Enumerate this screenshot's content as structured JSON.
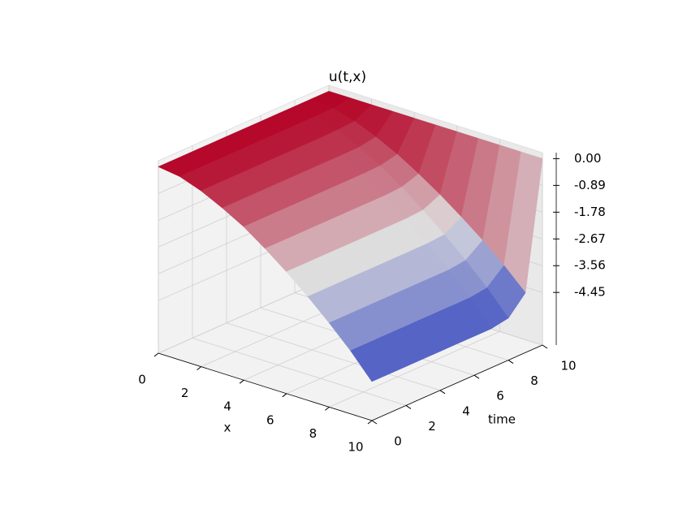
{
  "chart_data": {
    "type": "surface3d",
    "title": "u(t,x)",
    "xlabel": "x",
    "ylabel": "time",
    "x": [
      0,
      1,
      2,
      3,
      4,
      5,
      6,
      7,
      8,
      9,
      10
    ],
    "y": [
      0,
      1,
      2,
      3,
      4,
      5,
      6,
      7,
      8,
      9,
      10
    ],
    "z": [
      [
        0,
        -0.1,
        -0.35,
        -0.7,
        -1.1,
        -1.6,
        -2.15,
        -2.75,
        -3.4,
        -4.1,
        -4.9
      ],
      [
        0,
        -0.1,
        -0.35,
        -0.7,
        -1.1,
        -1.6,
        -2.15,
        -2.75,
        -3.4,
        -4.1,
        -4.9
      ],
      [
        0,
        -0.1,
        -0.35,
        -0.7,
        -1.1,
        -1.6,
        -2.15,
        -2.75,
        -3.4,
        -4.1,
        -4.9
      ],
      [
        0,
        -0.1,
        -0.35,
        -0.7,
        -1.1,
        -1.6,
        -2.15,
        -2.75,
        -3.4,
        -4.1,
        -4.9
      ],
      [
        0,
        -0.1,
        -0.35,
        -0.7,
        -1.1,
        -1.6,
        -2.15,
        -2.75,
        -3.4,
        -4.1,
        -4.9
      ],
      [
        0,
        -0.1,
        -0.35,
        -0.7,
        -1.1,
        -1.6,
        -2.15,
        -2.75,
        -3.4,
        -4.1,
        -4.9
      ],
      [
        0,
        -0.1,
        -0.35,
        -0.7,
        -1.1,
        -1.6,
        -2.15,
        -2.75,
        -3.4,
        -4.1,
        -4.9
      ],
      [
        0,
        -0.1,
        -0.35,
        -0.7,
        -1.1,
        -1.6,
        -2.15,
        -2.75,
        -3.4,
        -4.1,
        -4.9
      ],
      [
        0,
        -0.1,
        -0.34,
        -0.69,
        -1.08,
        -1.57,
        -2.11,
        -2.7,
        -3.33,
        -4.02,
        -4.8
      ],
      [
        0,
        -0.09,
        -0.3,
        -0.6,
        -0.95,
        -1.38,
        -1.85,
        -2.37,
        -2.92,
        -3.53,
        -4.21
      ],
      [
        0,
        0,
        0,
        0,
        0,
        0,
        0,
        0,
        0,
        0,
        0
      ]
    ],
    "xlim": [
      0,
      10
    ],
    "xticks": [
      0,
      2,
      4,
      6,
      8,
      10
    ],
    "ylim": [
      0,
      10
    ],
    "yticks": [
      0,
      2,
      4,
      6,
      8,
      10
    ],
    "zlim": [
      -6.2,
      0.2
    ],
    "zticks": [
      {
        "value": 0,
        "label": "0.00"
      },
      -0.89,
      -1.78,
      -2.67,
      -3.56,
      -4.45
    ],
    "colormap": [
      "#3b4cc0",
      "#dddddd",
      "#b40426"
    ],
    "grid": true
  }
}
